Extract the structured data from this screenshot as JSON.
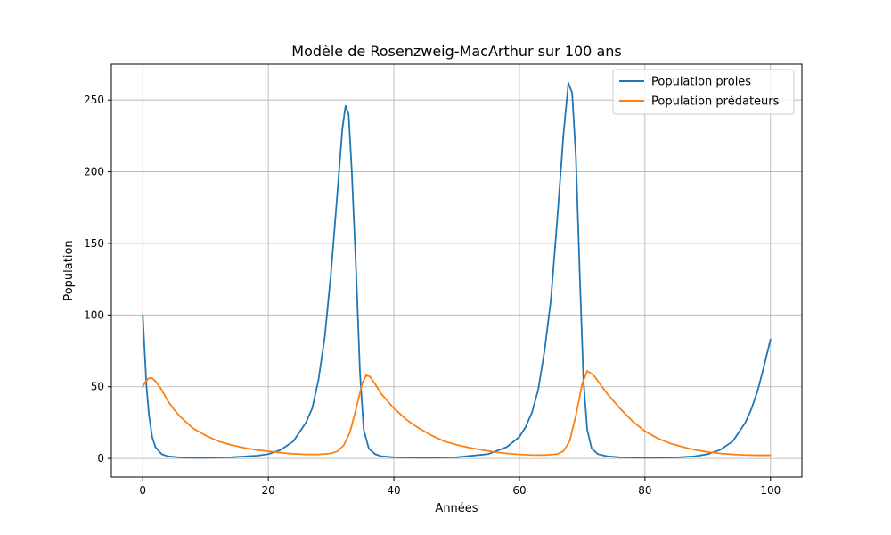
{
  "chart_data": {
    "type": "line",
    "title": "Modèle de Rosenzweig-MacArthur sur 100 ans",
    "xlabel": "Années",
    "ylabel": "Population",
    "xlim": [
      -5,
      105
    ],
    "ylim": [
      -13,
      275
    ],
    "xticks": [
      0,
      20,
      40,
      60,
      80,
      100
    ],
    "yticks": [
      0,
      50,
      100,
      150,
      200,
      250
    ],
    "grid": true,
    "legend_position": "top-right",
    "series": [
      {
        "name": "Population proies",
        "color": "#1f77b4",
        "points": [
          [
            0,
            100
          ],
          [
            0.3,
            75
          ],
          [
            0.6,
            50
          ],
          [
            1,
            30
          ],
          [
            1.5,
            15
          ],
          [
            2,
            8
          ],
          [
            3,
            3
          ],
          [
            4,
            1.5
          ],
          [
            6,
            0.7
          ],
          [
            8,
            0.5
          ],
          [
            10,
            0.5
          ],
          [
            14,
            0.8
          ],
          [
            18,
            1.8
          ],
          [
            20,
            3
          ],
          [
            22,
            6
          ],
          [
            24,
            12
          ],
          [
            26,
            25
          ],
          [
            27,
            35
          ],
          [
            28,
            55
          ],
          [
            29,
            85
          ],
          [
            30,
            130
          ],
          [
            31,
            185
          ],
          [
            31.8,
            230
          ],
          [
            32.3,
            246
          ],
          [
            32.8,
            240
          ],
          [
            33.3,
            200
          ],
          [
            34,
            130
          ],
          [
            34.6,
            60
          ],
          [
            35.2,
            20
          ],
          [
            36,
            7
          ],
          [
            37,
            3
          ],
          [
            38,
            1.5
          ],
          [
            40,
            0.8
          ],
          [
            45,
            0.5
          ],
          [
            50,
            0.8
          ],
          [
            55,
            3
          ],
          [
            58,
            8
          ],
          [
            60,
            15
          ],
          [
            61,
            22
          ],
          [
            62,
            32
          ],
          [
            63,
            48
          ],
          [
            64,
            75
          ],
          [
            65,
            110
          ],
          [
            66,
            165
          ],
          [
            67,
            225
          ],
          [
            67.8,
            262
          ],
          [
            68.4,
            255
          ],
          [
            69,
            210
          ],
          [
            69.6,
            130
          ],
          [
            70.2,
            55
          ],
          [
            70.8,
            20
          ],
          [
            71.5,
            7
          ],
          [
            72.5,
            3
          ],
          [
            74,
            1.5
          ],
          [
            76,
            0.8
          ],
          [
            80,
            0.5
          ],
          [
            85,
            0.7
          ],
          [
            88,
            1.5
          ],
          [
            90,
            3
          ],
          [
            92,
            6
          ],
          [
            94,
            12
          ],
          [
            96,
            25
          ],
          [
            97,
            35
          ],
          [
            98,
            48
          ],
          [
            99,
            65
          ],
          [
            100,
            83
          ]
        ]
      },
      {
        "name": "Population prédateurs",
        "color": "#ff7f0e",
        "points": [
          [
            0,
            50
          ],
          [
            0.5,
            54
          ],
          [
            1,
            56
          ],
          [
            1.5,
            56
          ],
          [
            2,
            54
          ],
          [
            3,
            48
          ],
          [
            4,
            40
          ],
          [
            5,
            34
          ],
          [
            6,
            29
          ],
          [
            8,
            21
          ],
          [
            10,
            16
          ],
          [
            12,
            12
          ],
          [
            14,
            9.5
          ],
          [
            16,
            7.5
          ],
          [
            18,
            6
          ],
          [
            20,
            5
          ],
          [
            22,
            4
          ],
          [
            24,
            3.2
          ],
          [
            26,
            2.8
          ],
          [
            28,
            2.8
          ],
          [
            30,
            3.5
          ],
          [
            31,
            5
          ],
          [
            32,
            9
          ],
          [
            33,
            18
          ],
          [
            34,
            35
          ],
          [
            35,
            53
          ],
          [
            35.6,
            58
          ],
          [
            36.2,
            57
          ],
          [
            37,
            52
          ],
          [
            38,
            45
          ],
          [
            40,
            35
          ],
          [
            42,
            27
          ],
          [
            44,
            21
          ],
          [
            46,
            16
          ],
          [
            48,
            12
          ],
          [
            50,
            9.5
          ],
          [
            52,
            7.5
          ],
          [
            54,
            6
          ],
          [
            56,
            4.5
          ],
          [
            58,
            3.5
          ],
          [
            60,
            2.8
          ],
          [
            62,
            2.4
          ],
          [
            64,
            2.3
          ],
          [
            66,
            3
          ],
          [
            67,
            5
          ],
          [
            68,
            12
          ],
          [
            69,
            30
          ],
          [
            70,
            52
          ],
          [
            70.8,
            61
          ],
          [
            71.5,
            59
          ],
          [
            72,
            57
          ],
          [
            74,
            45
          ],
          [
            76,
            35
          ],
          [
            78,
            26
          ],
          [
            80,
            19
          ],
          [
            82,
            14
          ],
          [
            84,
            10.5
          ],
          [
            86,
            8
          ],
          [
            88,
            6
          ],
          [
            90,
            4.5
          ],
          [
            92,
            3.5
          ],
          [
            94,
            2.8
          ],
          [
            96,
            2.4
          ],
          [
            98,
            2.2
          ],
          [
            100,
            2.2
          ]
        ]
      }
    ]
  }
}
